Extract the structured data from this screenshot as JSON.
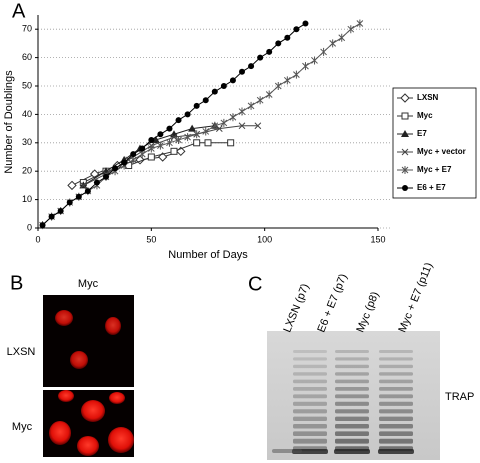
{
  "chart_data": {
    "type": "line",
    "ylabel": "Number of Doublings",
    "xlabel": "Number of Days",
    "xlim": [
      0,
      150
    ],
    "ylim": [
      0,
      75
    ],
    "xticks": [
      0,
      50,
      100,
      150
    ],
    "yticks": [
      0,
      10,
      20,
      30,
      40,
      50,
      60,
      70
    ],
    "grid": true,
    "legend": "right",
    "series": [
      {
        "name": "LXSN",
        "color": "#333333",
        "marker": "diamond-open",
        "x": [
          15,
          25,
          35,
          45,
          55,
          63
        ],
        "values": [
          15,
          19,
          22,
          24,
          25,
          27
        ]
      },
      {
        "name": "Myc",
        "color": "#333333",
        "marker": "square-open",
        "x": [
          20,
          30,
          40,
          50,
          60,
          70,
          75,
          85
        ],
        "values": [
          16,
          20,
          22,
          25,
          27,
          30,
          30,
          30
        ]
      },
      {
        "name": "E7",
        "color": "#222222",
        "marker": "triangle",
        "x": [
          20,
          30,
          38,
          45,
          52,
          60,
          68,
          78
        ],
        "values": [
          15,
          20,
          24,
          28,
          31,
          33,
          35,
          36
        ]
      },
      {
        "name": "Myc + vector",
        "color": "#444444",
        "marker": "x",
        "x": [
          20,
          30,
          40,
          50,
          60,
          70,
          80,
          90,
          97
        ],
        "values": [
          15,
          19,
          24,
          29,
          32,
          33,
          35,
          36,
          36
        ]
      },
      {
        "name": "Myc + E7",
        "color": "#555555",
        "marker": "star",
        "x": [
          2,
          6,
          10,
          14,
          18,
          22,
          26,
          30,
          34,
          38,
          42,
          46,
          50,
          54,
          58,
          62,
          66,
          70,
          74,
          78,
          82,
          86,
          90,
          94,
          98,
          102,
          106,
          110,
          114,
          118,
          122,
          126,
          130,
          134,
          138,
          142
        ],
        "values": [
          1,
          4,
          6,
          9,
          11,
          13,
          15,
          18,
          20,
          22,
          24,
          26,
          28,
          29,
          30,
          31,
          32,
          33,
          34,
          36,
          37,
          39,
          41,
          43,
          45,
          47,
          50,
          52,
          54,
          57,
          59,
          62,
          65,
          67,
          70,
          72
        ]
      },
      {
        "name": "E6 + E7",
        "color": "#000000",
        "marker": "circle",
        "x": [
          2,
          6,
          10,
          14,
          18,
          22,
          26,
          30,
          34,
          38,
          42,
          46,
          50,
          54,
          58,
          62,
          66,
          70,
          74,
          78,
          82,
          86,
          90,
          94,
          98,
          102,
          106,
          110,
          114,
          118
        ],
        "values": [
          1,
          4,
          6,
          9,
          11,
          13,
          16,
          18,
          21,
          23,
          26,
          28,
          31,
          33,
          35,
          38,
          40,
          43,
          45,
          48,
          50,
          52,
          55,
          57,
          60,
          62,
          65,
          67,
          70,
          72
        ]
      }
    ]
  },
  "panels": {
    "a": "A",
    "b": "B",
    "c": "C"
  },
  "panel_b": {
    "column": "Myc",
    "rows": [
      "LXSN",
      "Myc"
    ]
  },
  "panel_c": {
    "lanes": [
      "LXSN (p7)",
      "E6 + E7 (p7)",
      "Myc (p8)",
      "Myc + E7 (p11)"
    ],
    "assay": "TRAP"
  }
}
